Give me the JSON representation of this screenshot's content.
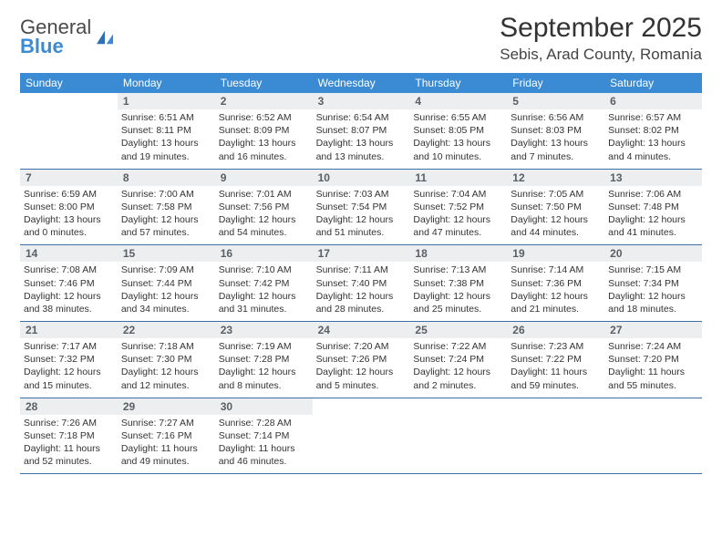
{
  "logo": {
    "top": "General",
    "bottom": "Blue"
  },
  "header": {
    "month": "September 2025",
    "location": "Sebis, Arad County, Romania"
  },
  "colors": {
    "accent": "#3b8bd4",
    "date_bg": "#eceef0",
    "rule": "#3b6fa8"
  },
  "day_names": [
    "Sunday",
    "Monday",
    "Tuesday",
    "Wednesday",
    "Thursday",
    "Friday",
    "Saturday"
  ],
  "weeks": [
    [
      {
        "n": "",
        "sr": "",
        "ss": "",
        "dl": ""
      },
      {
        "n": "1",
        "sr": "Sunrise: 6:51 AM",
        "ss": "Sunset: 8:11 PM",
        "dl": "Daylight: 13 hours and 19 minutes."
      },
      {
        "n": "2",
        "sr": "Sunrise: 6:52 AM",
        "ss": "Sunset: 8:09 PM",
        "dl": "Daylight: 13 hours and 16 minutes."
      },
      {
        "n": "3",
        "sr": "Sunrise: 6:54 AM",
        "ss": "Sunset: 8:07 PM",
        "dl": "Daylight: 13 hours and 13 minutes."
      },
      {
        "n": "4",
        "sr": "Sunrise: 6:55 AM",
        "ss": "Sunset: 8:05 PM",
        "dl": "Daylight: 13 hours and 10 minutes."
      },
      {
        "n": "5",
        "sr": "Sunrise: 6:56 AM",
        "ss": "Sunset: 8:03 PM",
        "dl": "Daylight: 13 hours and 7 minutes."
      },
      {
        "n": "6",
        "sr": "Sunrise: 6:57 AM",
        "ss": "Sunset: 8:02 PM",
        "dl": "Daylight: 13 hours and 4 minutes."
      }
    ],
    [
      {
        "n": "7",
        "sr": "Sunrise: 6:59 AM",
        "ss": "Sunset: 8:00 PM",
        "dl": "Daylight: 13 hours and 0 minutes."
      },
      {
        "n": "8",
        "sr": "Sunrise: 7:00 AM",
        "ss": "Sunset: 7:58 PM",
        "dl": "Daylight: 12 hours and 57 minutes."
      },
      {
        "n": "9",
        "sr": "Sunrise: 7:01 AM",
        "ss": "Sunset: 7:56 PM",
        "dl": "Daylight: 12 hours and 54 minutes."
      },
      {
        "n": "10",
        "sr": "Sunrise: 7:03 AM",
        "ss": "Sunset: 7:54 PM",
        "dl": "Daylight: 12 hours and 51 minutes."
      },
      {
        "n": "11",
        "sr": "Sunrise: 7:04 AM",
        "ss": "Sunset: 7:52 PM",
        "dl": "Daylight: 12 hours and 47 minutes."
      },
      {
        "n": "12",
        "sr": "Sunrise: 7:05 AM",
        "ss": "Sunset: 7:50 PM",
        "dl": "Daylight: 12 hours and 44 minutes."
      },
      {
        "n": "13",
        "sr": "Sunrise: 7:06 AM",
        "ss": "Sunset: 7:48 PM",
        "dl": "Daylight: 12 hours and 41 minutes."
      }
    ],
    [
      {
        "n": "14",
        "sr": "Sunrise: 7:08 AM",
        "ss": "Sunset: 7:46 PM",
        "dl": "Daylight: 12 hours and 38 minutes."
      },
      {
        "n": "15",
        "sr": "Sunrise: 7:09 AM",
        "ss": "Sunset: 7:44 PM",
        "dl": "Daylight: 12 hours and 34 minutes."
      },
      {
        "n": "16",
        "sr": "Sunrise: 7:10 AM",
        "ss": "Sunset: 7:42 PM",
        "dl": "Daylight: 12 hours and 31 minutes."
      },
      {
        "n": "17",
        "sr": "Sunrise: 7:11 AM",
        "ss": "Sunset: 7:40 PM",
        "dl": "Daylight: 12 hours and 28 minutes."
      },
      {
        "n": "18",
        "sr": "Sunrise: 7:13 AM",
        "ss": "Sunset: 7:38 PM",
        "dl": "Daylight: 12 hours and 25 minutes."
      },
      {
        "n": "19",
        "sr": "Sunrise: 7:14 AM",
        "ss": "Sunset: 7:36 PM",
        "dl": "Daylight: 12 hours and 21 minutes."
      },
      {
        "n": "20",
        "sr": "Sunrise: 7:15 AM",
        "ss": "Sunset: 7:34 PM",
        "dl": "Daylight: 12 hours and 18 minutes."
      }
    ],
    [
      {
        "n": "21",
        "sr": "Sunrise: 7:17 AM",
        "ss": "Sunset: 7:32 PM",
        "dl": "Daylight: 12 hours and 15 minutes."
      },
      {
        "n": "22",
        "sr": "Sunrise: 7:18 AM",
        "ss": "Sunset: 7:30 PM",
        "dl": "Daylight: 12 hours and 12 minutes."
      },
      {
        "n": "23",
        "sr": "Sunrise: 7:19 AM",
        "ss": "Sunset: 7:28 PM",
        "dl": "Daylight: 12 hours and 8 minutes."
      },
      {
        "n": "24",
        "sr": "Sunrise: 7:20 AM",
        "ss": "Sunset: 7:26 PM",
        "dl": "Daylight: 12 hours and 5 minutes."
      },
      {
        "n": "25",
        "sr": "Sunrise: 7:22 AM",
        "ss": "Sunset: 7:24 PM",
        "dl": "Daylight: 12 hours and 2 minutes."
      },
      {
        "n": "26",
        "sr": "Sunrise: 7:23 AM",
        "ss": "Sunset: 7:22 PM",
        "dl": "Daylight: 11 hours and 59 minutes."
      },
      {
        "n": "27",
        "sr": "Sunrise: 7:24 AM",
        "ss": "Sunset: 7:20 PM",
        "dl": "Daylight: 11 hours and 55 minutes."
      }
    ],
    [
      {
        "n": "28",
        "sr": "Sunrise: 7:26 AM",
        "ss": "Sunset: 7:18 PM",
        "dl": "Daylight: 11 hours and 52 minutes."
      },
      {
        "n": "29",
        "sr": "Sunrise: 7:27 AM",
        "ss": "Sunset: 7:16 PM",
        "dl": "Daylight: 11 hours and 49 minutes."
      },
      {
        "n": "30",
        "sr": "Sunrise: 7:28 AM",
        "ss": "Sunset: 7:14 PM",
        "dl": "Daylight: 11 hours and 46 minutes."
      },
      {
        "n": "",
        "sr": "",
        "ss": "",
        "dl": ""
      },
      {
        "n": "",
        "sr": "",
        "ss": "",
        "dl": ""
      },
      {
        "n": "",
        "sr": "",
        "ss": "",
        "dl": ""
      },
      {
        "n": "",
        "sr": "",
        "ss": "",
        "dl": ""
      }
    ]
  ]
}
